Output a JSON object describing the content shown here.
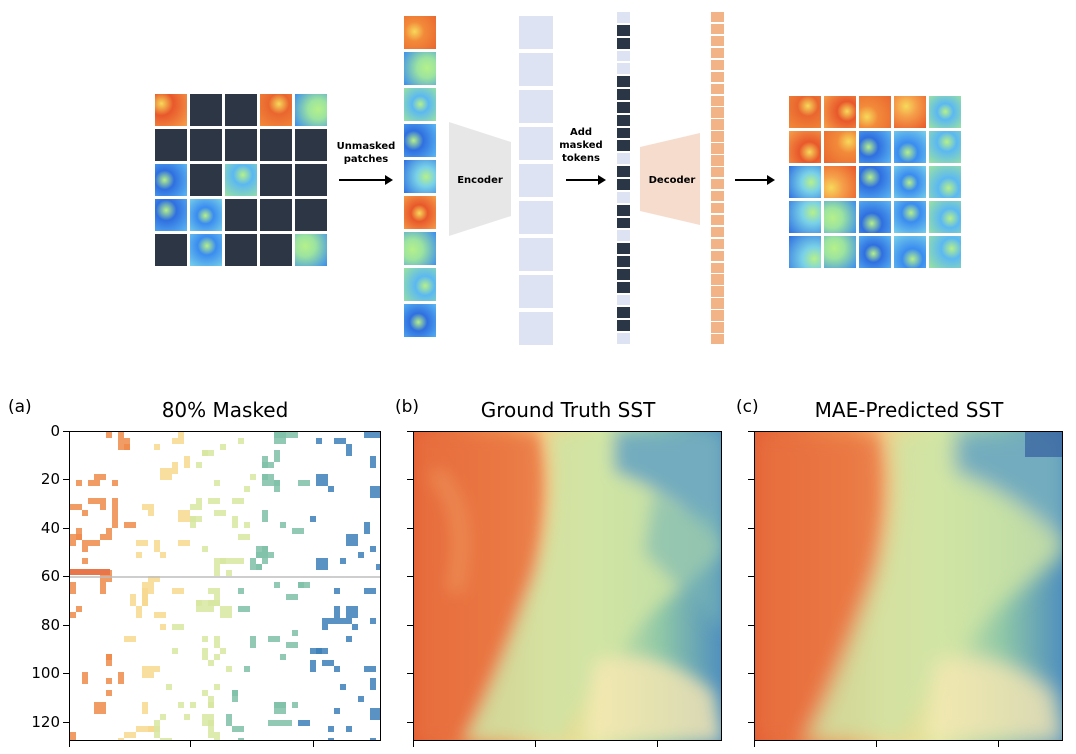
{
  "top": {
    "label_unmasked": [
      "Unmasked",
      "patches"
    ],
    "label_encoder": "Encoder",
    "label_add": [
      "Add",
      "masked",
      "tokens"
    ],
    "label_decoder": "Decoder"
  },
  "panels": [
    {
      "letter": "(a)",
      "title": "80% Masked"
    },
    {
      "letter": "(b)",
      "title": "Ground Truth SST"
    },
    {
      "letter": "(c)",
      "title": "MAE-Predicted SST"
    }
  ],
  "yaxis": {
    "ticks": [
      "0",
      "20",
      "40",
      "60",
      "80",
      "100",
      "120"
    ]
  },
  "colors": {
    "masked_patch": "#2d3644",
    "encoder": "#e7e7e7",
    "decoder": "#f6dccc",
    "token_light": "#dde3f2",
    "token_dark": "#2a3545",
    "decoder_token": "#f2b487"
  }
}
